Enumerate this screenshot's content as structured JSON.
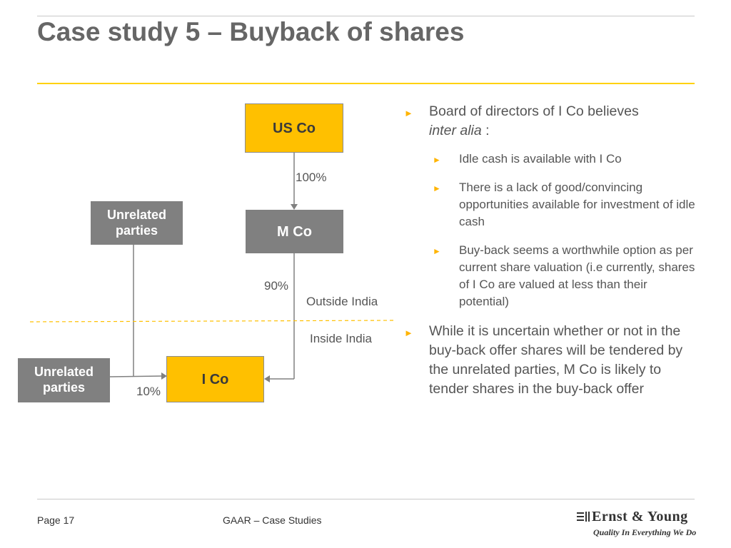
{
  "title": "Case study 5 – Buyback of shares",
  "diagram": {
    "us_co": "US Co",
    "m_co": "M Co",
    "i_co": "I Co",
    "unrelated_top": "Unrelated parties",
    "unrelated_bottom": "Unrelated parties",
    "pct_us_to_m": "100%",
    "pct_m_to_i": "90%",
    "pct_unrelated_to_i": "10%",
    "outside_india": "Outside India",
    "inside_india": "Inside India",
    "colors": {
      "yellow_box": "#ffc000",
      "grey_box": "#808080",
      "divider": "#ffd100"
    }
  },
  "bullets": {
    "b1_text": "Board of directors of I Co believes",
    "b1_italic": "inter alia",
    "b1_suffix": " :",
    "sub": [
      "Idle cash is available with I Co",
      "There is a lack of good/convincing opportunities available for investment of idle cash",
      "Buy-back seems a worthwhile option as per current share valuation (i.e currently, shares of I Co are valued at less than their potential)"
    ],
    "b2_text": "While it is uncertain whether or not in the buy-back offer shares will be tendered by the unrelated parties, M Co is likely to tender shares in the buy-back offer"
  },
  "footer": {
    "page": "Page 17",
    "center": "GAAR – Case Studies",
    "logo": "Ernst & Young",
    "tagline": "Quality In Everything We Do"
  },
  "theme": {
    "accent": "#ffd100",
    "bullet": "#ffb400"
  }
}
